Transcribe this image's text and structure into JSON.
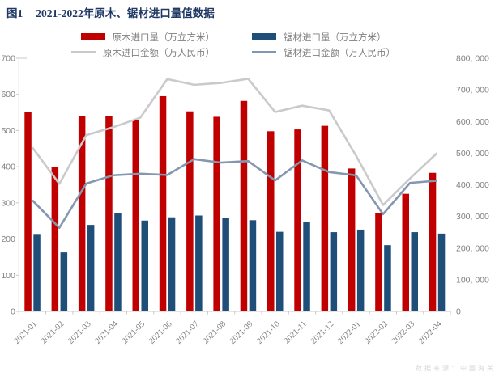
{
  "header": {
    "fig_no": "图1",
    "title": "2021-2022年原木、锯材进口量值数据"
  },
  "colors": {
    "title_text": "#1F3864",
    "axis_text": "#808080",
    "legend_text": "#7F7F7F",
    "axis_line": "#C9C9C9",
    "log_volume": "#C00000",
    "sawn_volume": "#1F4E79",
    "log_value": "#C9CACC",
    "sawn_value": "#8497B0",
    "background": "#FFFFFF"
  },
  "chart_data": {
    "type": "bar",
    "title": "2021-2022年原木、锯材进口量值数据",
    "xlabel": "",
    "ylabel_left": "万立方米",
    "ylabel_right": "万人民币",
    "grid": false,
    "legend_position": "top",
    "categories": [
      "2021-01",
      "2021-02",
      "2021-03",
      "2021-04",
      "2021-05",
      "2021-06",
      "2021-07",
      "2021-08",
      "2021-09",
      "2021-10",
      "2021-11",
      "2021-12",
      "2022-01",
      "2022-02",
      "2022-03",
      "2022-04"
    ],
    "series": [
      {
        "key": "log-volume",
        "name": "原木进口量（万立方米）",
        "type": "bar",
        "axis": "left",
        "color": "#C00000",
        "values": [
          551,
          400,
          540,
          539,
          528,
          595,
          553,
          538,
          582,
          498,
          503,
          513,
          395,
          271,
          325,
          383
        ]
      },
      {
        "key": "sawn-volume",
        "name": "锯材进口量（万立方米）",
        "type": "bar",
        "axis": "left",
        "color": "#1F4E79",
        "values": [
          214,
          163,
          239,
          271,
          251,
          260,
          265,
          258,
          252,
          220,
          247,
          219,
          226,
          183,
          219,
          215
        ]
      },
      {
        "key": "log-value",
        "name": "原木进口金额（万人民币）",
        "type": "line",
        "axis": "right",
        "color": "#C9CACC",
        "values": [
          518000,
          403000,
          557000,
          582000,
          612000,
          734000,
          716000,
          722000,
          735000,
          630000,
          650000,
          635000,
          492000,
          336000,
          420000,
          500000
        ]
      },
      {
        "key": "sawn-value",
        "name": "锯材进口金额（万人民币）",
        "type": "line",
        "axis": "right",
        "color": "#8497B0",
        "values": [
          351000,
          264000,
          404000,
          430000,
          435000,
          431000,
          481000,
          470000,
          475000,
          414000,
          477000,
          440000,
          430000,
          307000,
          406000,
          413000
        ]
      }
    ],
    "left_axis": {
      "min": 0,
      "max": 700,
      "step": 100,
      "tick_labels": [
        "0",
        "100",
        "200",
        "300",
        "400",
        "500",
        "600",
        "700"
      ]
    },
    "right_axis": {
      "min": 0,
      "max": 800000,
      "step": 100000,
      "tick_labels": [
        "0",
        "100, 000",
        "200, 000",
        "300, 000",
        "400, 000",
        "500, 000",
        "600, 000",
        "700, 000",
        "800, 000"
      ]
    }
  },
  "watermark": "数据来源：中国海关"
}
